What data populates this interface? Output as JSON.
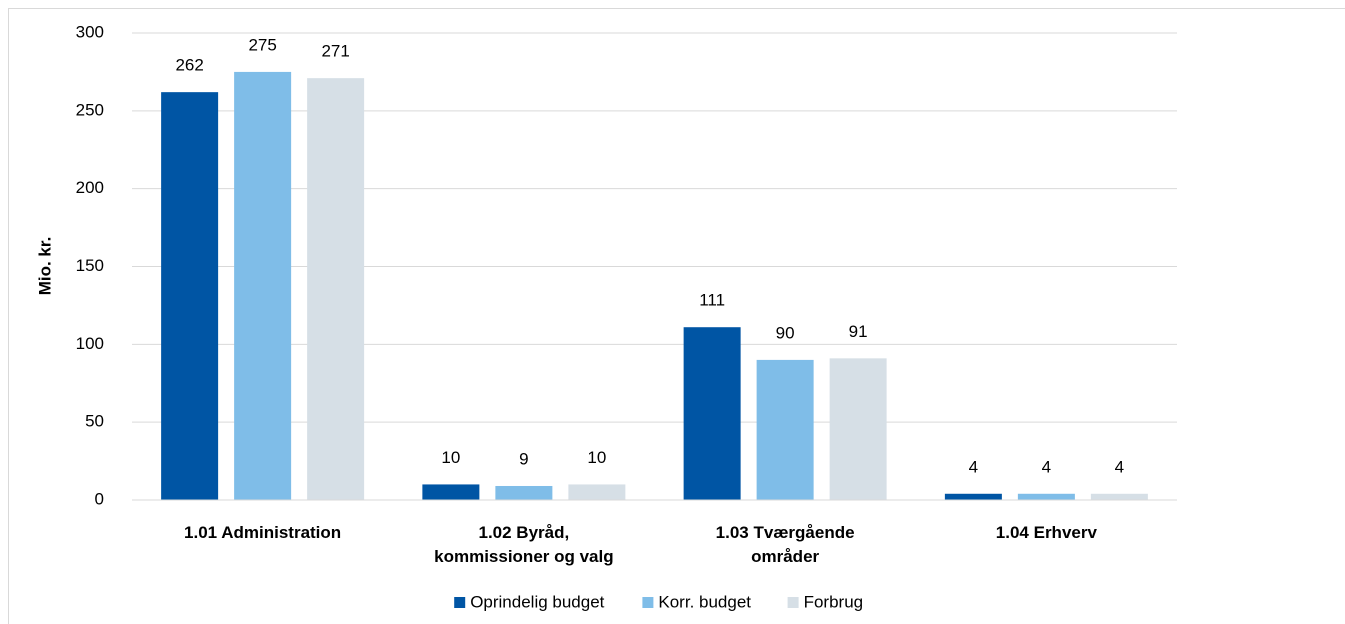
{
  "chart_data": {
    "type": "bar",
    "ylabel": "Mio. kr.",
    "categories": [
      "1.01 Administration",
      "1.02 Byråd, kommissioner og valg",
      "1.03 Tværgående områder",
      "1.04 Erhverv"
    ],
    "series": [
      {
        "name": "Oprindelig budget",
        "color": "#0055a4",
        "values": [
          262,
          10,
          111,
          4
        ]
      },
      {
        "name": "Korr. budget",
        "color": "#7fbde8",
        "values": [
          275,
          9,
          90,
          4
        ]
      },
      {
        "name": "Forbrug",
        "color": "#d6dfe6",
        "values": [
          271,
          10,
          91,
          4
        ]
      }
    ],
    "ylim": [
      0,
      300
    ],
    "yticks": [
      0,
      50,
      100,
      150,
      200,
      250,
      300
    ],
    "grid": true,
    "legend": "bottom"
  }
}
